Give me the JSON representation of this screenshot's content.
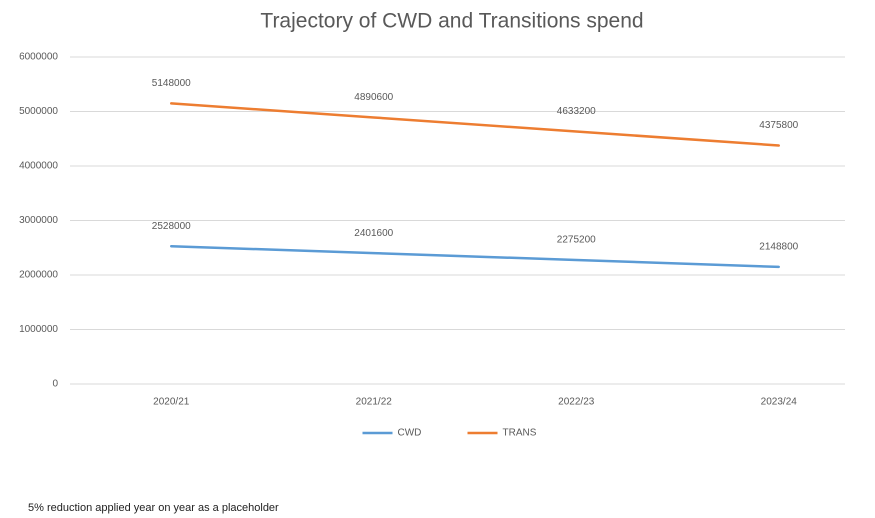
{
  "chart_data": {
    "type": "line",
    "title": "Trajectory of CWD and Transitions spend",
    "categories": [
      "2020/21",
      "2021/22",
      "2022/23",
      "2023/24"
    ],
    "series": [
      {
        "name": "CWD",
        "color": "#5b9bd5",
        "values": [
          2528000,
          2401600,
          2275200,
          2148800
        ]
      },
      {
        "name": "TRANS",
        "color": "#ed7d31",
        "values": [
          5148000,
          4890600,
          4633200,
          4375800
        ]
      }
    ],
    "ylim": [
      0,
      6000000
    ],
    "yticks": [
      0,
      1000000,
      2000000,
      3000000,
      4000000,
      5000000,
      6000000
    ],
    "grid": true,
    "legend": "bottom",
    "data_labels": true,
    "footnote": "5% reduction  applied year on year as a placeholder"
  }
}
